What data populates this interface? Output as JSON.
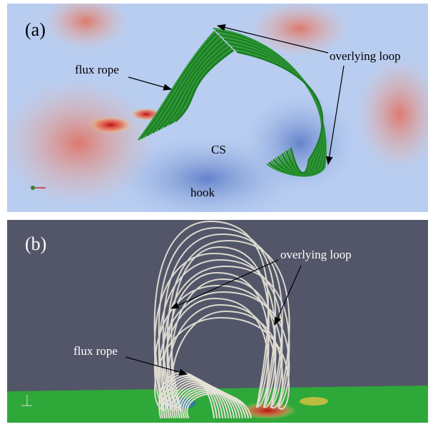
{
  "panels": [
    {
      "label": "(a)",
      "annotations": [
        "flux rope",
        "overlying loop",
        "CS",
        "hook"
      ]
    },
    {
      "label": "(b)",
      "annotations": [
        "overlying loop",
        "flux rope"
      ]
    }
  ]
}
